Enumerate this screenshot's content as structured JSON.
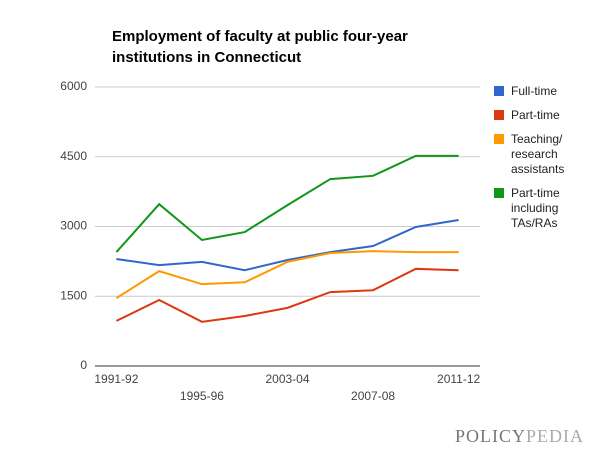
{
  "chart_data": {
    "type": "line",
    "title": "Employment of faculty at public four-year institutions in Connecticut",
    "categories": [
      "1991-92",
      null,
      "1995-96",
      null,
      "2003-04",
      null,
      "2007-08",
      null,
      "2011-12"
    ],
    "series": [
      {
        "name": "Full-time",
        "color": "#3366cc",
        "values": [
          2300,
          2170,
          2240,
          2060,
          2280,
          2450,
          2580,
          2990,
          3140
        ]
      },
      {
        "name": "Part-time",
        "color": "#dc3912",
        "values": [
          970,
          1420,
          950,
          1075,
          1250,
          1590,
          1630,
          2090,
          2060
        ]
      },
      {
        "name": "Teaching/ research assistants",
        "color": "#ff9900",
        "values": [
          1460,
          2040,
          1760,
          1800,
          2240,
          2430,
          2470,
          2450,
          2450
        ]
      },
      {
        "name": "Part-time including TAs/RAs",
        "color": "#109618",
        "values": [
          2450,
          3480,
          2710,
          2880,
          3460,
          4020,
          4090,
          4520,
          4520
        ]
      }
    ],
    "ylim": [
      0,
      6000
    ],
    "yticks": [
      0,
      1500,
      3000,
      4500,
      6000
    ],
    "grid": true,
    "legend": "right",
    "logo": [
      "POLICY",
      "PEDIA"
    ]
  }
}
